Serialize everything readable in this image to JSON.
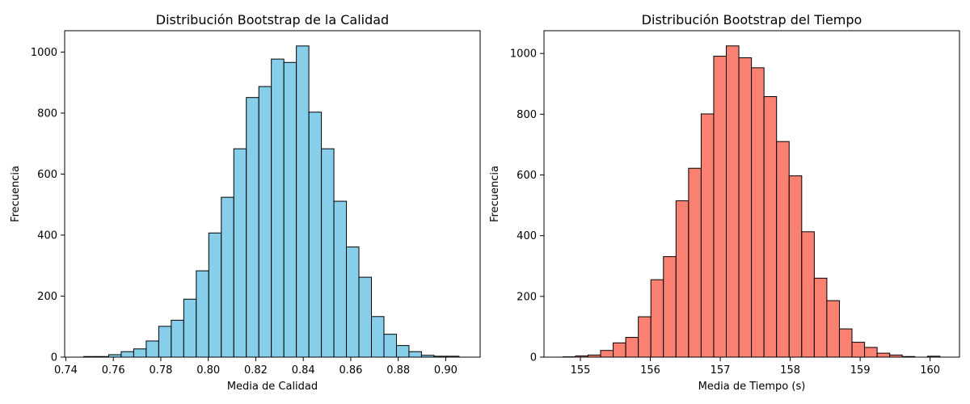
{
  "chart_data": [
    {
      "type": "bar",
      "title": "Distribución Bootstrap de la Calidad",
      "xlabel": "Media de Calidad",
      "ylabel": "Frecuencia",
      "bar_color": "#87ceeb",
      "edge_color": "#000000",
      "xlim": [
        0.7395,
        0.9145
      ],
      "ylim": [
        0,
        1070
      ],
      "xticks": [
        0.74,
        0.76,
        0.78,
        0.8,
        0.82,
        0.84,
        0.86,
        0.88,
        0.9
      ],
      "xtick_labels": [
        "0.74",
        "0.76",
        "0.78",
        "0.80",
        "0.82",
        "0.84",
        "0.86",
        "0.88",
        "0.90"
      ],
      "yticks": [
        0,
        200,
        400,
        600,
        800,
        1000
      ],
      "ytick_labels": [
        "0",
        "200",
        "400",
        "600",
        "800",
        "1000"
      ],
      "bin_start": 0.7475,
      "bin_width": 0.00527,
      "values": [
        2,
        2,
        8,
        18,
        27,
        53,
        101,
        121,
        190,
        283,
        407,
        524,
        683,
        851,
        887,
        977,
        966,
        1020,
        803,
        683,
        511,
        361,
        262,
        133,
        75,
        38,
        18,
        6,
        3,
        3
      ]
    },
    {
      "type": "bar",
      "title": "Distribución Bootstrap del Tiempo",
      "xlabel": "Media de Tiempo (s)",
      "ylabel": "Frecuencia",
      "bar_color": "#fa8072",
      "edge_color": "#000000",
      "xlim": [
        154.48,
        160.42
      ],
      "ylim": [
        0,
        1075
      ],
      "xticks": [
        155,
        156,
        157,
        158,
        159,
        160
      ],
      "xtick_labels": [
        "155",
        "156",
        "157",
        "158",
        "159",
        "160"
      ],
      "yticks": [
        0,
        200,
        400,
        600,
        800,
        1000
      ],
      "ytick_labels": [
        "0",
        "200",
        "400",
        "600",
        "800",
        "1000"
      ],
      "bin_start": 154.75,
      "bin_width": 0.1797,
      "values": [
        1,
        4,
        7,
        22,
        47,
        65,
        133,
        255,
        331,
        515,
        622,
        801,
        991,
        1025,
        986,
        953,
        858,
        710,
        597,
        413,
        260,
        186,
        93,
        49,
        32,
        13,
        7,
        2,
        0,
        3
      ]
    }
  ]
}
